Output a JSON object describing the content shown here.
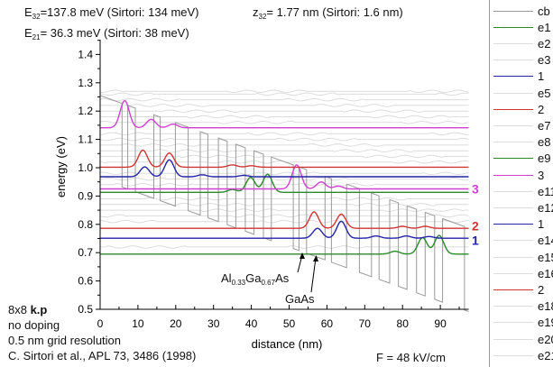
{
  "header": {
    "e32_label": "E",
    "e32_sub": "32",
    "e32_text": "=137.8 meV (Sirtori: 134 meV)",
    "z32_label": "z",
    "z32_sub": "32",
    "z32_text": "= 1.77 nm (Sirtori: 1.6 nm)",
    "e21_label": "E",
    "e21_sub": "21",
    "e21_text": "=  36.3 meV (Sirtori:   38 meV)"
  },
  "notes": {
    "method_prefix": "8x8 ",
    "method_bold": "k.p",
    "doping": "no doping",
    "grid": "0.5 nm grid resolution",
    "reference": "C. Sirtori et al., APL 73, 3486 (1998)",
    "field": "F = 48 kV/cm"
  },
  "annotations": {
    "algaas_al": "Al",
    "algaas_x": "0.33",
    "algaas_ga": "Ga",
    "algaas_y": "0.67",
    "algaas_as": "As",
    "gaas": "GaAs",
    "label_3": "3",
    "label_2": "2",
    "label_1": "1"
  },
  "legend": [
    {
      "label": "cb",
      "color": "#999999"
    },
    {
      "label": "e1",
      "color": "#2a8a2a"
    },
    {
      "label": "e2",
      "color": "#dddddd"
    },
    {
      "label": "e3",
      "color": "#dddddd"
    },
    {
      "label": "1",
      "color": "#2424a8"
    },
    {
      "label": "e5",
      "color": "#dddddd"
    },
    {
      "label": "2",
      "color": "#d03434"
    },
    {
      "label": "e7",
      "color": "#dddddd"
    },
    {
      "label": "e8",
      "color": "#dddddd"
    },
    {
      "label": "e9",
      "color": "#2a8a2a"
    },
    {
      "label": "3",
      "color": "#d040d0"
    },
    {
      "label": "e11",
      "color": "#dddddd"
    },
    {
      "label": "e12",
      "color": "#dddddd"
    },
    {
      "label": "1",
      "color": "#2424a8"
    },
    {
      "label": "e14",
      "color": "#dddddd"
    },
    {
      "label": "e15",
      "color": "#dddddd"
    },
    {
      "label": "e16",
      "color": "#dddddd"
    },
    {
      "label": "2",
      "color": "#d03434"
    },
    {
      "label": "e18",
      "color": "#dddddd"
    },
    {
      "label": "e19",
      "color": "#dddddd"
    },
    {
      "label": "e20",
      "color": "#dddddd"
    },
    {
      "label": "e21",
      "color": "#dddddd"
    }
  ],
  "chart_data": {
    "type": "line",
    "xlabel": "distance (nm)",
    "ylabel": "energy (eV)",
    "xlim": [
      0,
      97.5
    ],
    "ylim": [
      0.5,
      1.45
    ],
    "xticks": [
      0,
      10,
      20,
      30,
      40,
      50,
      60,
      70,
      80,
      90
    ],
    "yticks": [
      "0.5",
      "0.6",
      "0.7",
      "0.8",
      "0.9",
      "1.0",
      "1.1",
      "1.2",
      "1.3",
      "1.4"
    ],
    "conduction_band": {
      "start_energy": 1.255,
      "slope_eV_per_nm": -0.0048,
      "barrier_offset": 0.295,
      "layers_nm": [
        5.8,
        1.5,
        2.0,
        4.9,
        1.7,
        4.0,
        3.4,
        3.2,
        2.0,
        2.8,
        2.3,
        2.3,
        2.5,
        2.3,
        2.5,
        2.1
      ],
      "first_layer": "barrier"
    },
    "states": [
      {
        "legend": "e1",
        "energy": 0.695,
        "color": "#2a8a2a",
        "peaks": [
          [
            78,
            0.01
          ],
          [
            85.3,
            0.058
          ],
          [
            89.7,
            0.066
          ]
        ]
      },
      {
        "legend": "1",
        "energy": 0.751,
        "color": "#2424a8",
        "peaks": [
          [
            57.5,
            0.035
          ],
          [
            63.8,
            0.06
          ],
          [
            73,
            0.008
          ],
          [
            81,
            0.008
          ],
          [
            87,
            0.006
          ]
        ]
      },
      {
        "legend": "2",
        "energy": 0.786,
        "color": "#d03434",
        "peaks": [
          [
            56.6,
            0.058
          ],
          [
            63.8,
            0.05
          ],
          [
            80,
            0.007
          ],
          [
            86,
            0.007
          ]
        ]
      },
      {
        "legend": "e9",
        "energy": 0.913,
        "color": "#2a8a2a",
        "peaks": [
          [
            35,
            0.01
          ],
          [
            39.8,
            0.053
          ],
          [
            44.3,
            0.064
          ]
        ]
      },
      {
        "legend": "3",
        "energy": 0.925,
        "color": "#d040d0",
        "peaks": [
          [
            52,
            0.085
          ],
          [
            58.5,
            0.025
          ],
          [
            63,
            0.01
          ]
        ]
      },
      {
        "legend": "1",
        "energy": 0.968,
        "color": "#2424a8",
        "peaks": [
          [
            11.8,
            0.035
          ],
          [
            18.3,
            0.06
          ],
          [
            27,
            0.007
          ],
          [
            38,
            0.005
          ]
        ]
      },
      {
        "legend": "2",
        "energy": 1.002,
        "color": "#d03434",
        "peaks": [
          [
            11.3,
            0.06
          ],
          [
            18.3,
            0.05
          ],
          [
            35,
            0.008
          ],
          [
            40,
            0.005
          ]
        ]
      },
      {
        "legend": "3",
        "energy": 1.141,
        "color": "#d040d0",
        "peaks": [
          [
            6.5,
            0.096
          ],
          [
            13.5,
            0.03
          ],
          [
            19.3,
            0.013
          ]
        ]
      }
    ],
    "background_levels": [
      0.72,
      0.81,
      0.83,
      0.85,
      0.87,
      0.89,
      0.94,
      0.96,
      0.98,
      1.02,
      1.04,
      1.06,
      1.08,
      1.1,
      1.12,
      1.16,
      1.18,
      1.2,
      1.22,
      1.24,
      1.26,
      1.27
    ],
    "right_labels": [
      {
        "text_key": "label_3",
        "energy": 0.925,
        "color": "#d040d0"
      },
      {
        "text_key": "label_2",
        "energy": 0.786,
        "color": "#d03434"
      },
      {
        "text_key": "label_1",
        "energy": 0.751,
        "color": "#2424a8"
      }
    ]
  }
}
